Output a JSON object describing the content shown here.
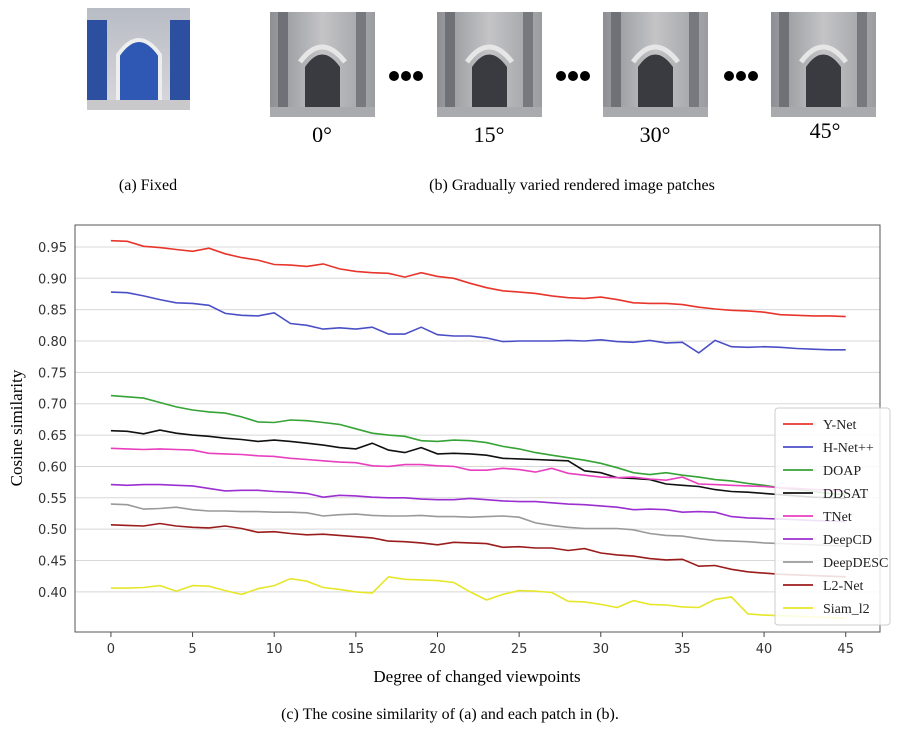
{
  "figure": {
    "panel_a": {
      "caption": "(a) Fixed"
    },
    "panel_b": {
      "angles": [
        "0°",
        "15°",
        "30°",
        "45°"
      ],
      "caption": "(b) Gradually varied rendered image patches"
    },
    "caption": "(c) The cosine similarity of (a) and each patch in (b)."
  },
  "chart_data": {
    "type": "line",
    "x_label": "Degree of changed viewpoints",
    "y_label": "Cosine similarity",
    "x": [
      0,
      1,
      2,
      3,
      4,
      5,
      6,
      7,
      8,
      9,
      10,
      11,
      12,
      13,
      14,
      15,
      16,
      17,
      18,
      19,
      20,
      21,
      22,
      23,
      24,
      25,
      26,
      27,
      28,
      29,
      30,
      31,
      32,
      33,
      34,
      35,
      36,
      37,
      38,
      39,
      40,
      41,
      42,
      43,
      44,
      45
    ],
    "xlim": [
      -2.2,
      47.1
    ],
    "xticks": [
      0,
      5,
      10,
      15,
      20,
      25,
      30,
      35,
      40,
      45
    ],
    "ylim": [
      0.336,
      0.985
    ],
    "yticks": [
      {
        "value": 0.4,
        "label": "0.40"
      },
      0.45,
      {
        "value": 0.5,
        "label": "0.50"
      },
      0.55,
      {
        "value": 0.6,
        "label": "0.60"
      },
      0.65,
      {
        "value": 0.7,
        "label": "0.70"
      },
      0.75,
      {
        "value": 0.8,
        "label": "0.80"
      },
      0.85,
      {
        "value": 0.9,
        "label": "0.90"
      },
      0.95
    ],
    "grid": true,
    "legend": "lower right",
    "series": [
      {
        "name": "Y-Net",
        "color": "#e8352b",
        "values": [
          0.96,
          0.959,
          0.951,
          0.949,
          0.946,
          0.943,
          0.948,
          0.939,
          0.933,
          0.929,
          0.922,
          0.921,
          0.919,
          0.923,
          0.915,
          0.911,
          0.909,
          0.908,
          0.902,
          0.909,
          0.903,
          0.9,
          0.892,
          0.885,
          0.88,
          0.878,
          0.876,
          0.872,
          0.869,
          0.868,
          0.87,
          0.866,
          0.861,
          0.86,
          0.86,
          0.858,
          0.854,
          0.851,
          0.849,
          0.848,
          0.846,
          0.842,
          0.841,
          0.84,
          0.84,
          0.839
        ]
      },
      {
        "name": "H-Net++",
        "color": "#4b4fc6",
        "values": [
          0.878,
          0.877,
          0.872,
          0.866,
          0.861,
          0.86,
          0.857,
          0.844,
          0.841,
          0.84,
          0.845,
          0.828,
          0.825,
          0.819,
          0.821,
          0.819,
          0.822,
          0.811,
          0.811,
          0.822,
          0.81,
          0.808,
          0.808,
          0.805,
          0.799,
          0.8,
          0.8,
          0.8,
          0.801,
          0.8,
          0.802,
          0.799,
          0.798,
          0.801,
          0.797,
          0.798,
          0.781,
          0.801,
          0.791,
          0.79,
          0.791,
          0.79,
          0.788,
          0.787,
          0.786,
          0.786
        ]
      },
      {
        "name": "DOAP",
        "color": "#36a336",
        "values": [
          0.713,
          0.711,
          0.709,
          0.702,
          0.695,
          0.69,
          0.687,
          0.685,
          0.679,
          0.671,
          0.67,
          0.674,
          0.673,
          0.67,
          0.667,
          0.66,
          0.653,
          0.65,
          0.648,
          0.641,
          0.64,
          0.642,
          0.641,
          0.638,
          0.632,
          0.628,
          0.622,
          0.618,
          0.614,
          0.61,
          0.605,
          0.598,
          0.59,
          0.587,
          0.59,
          0.586,
          0.583,
          0.579,
          0.577,
          0.573,
          0.57,
          0.566,
          0.563,
          0.56,
          0.557,
          0.555
        ]
      },
      {
        "name": "DDSAT",
        "color": "#111111",
        "values": [
          0.657,
          0.656,
          0.652,
          0.658,
          0.653,
          0.65,
          0.648,
          0.645,
          0.643,
          0.64,
          0.642,
          0.64,
          0.637,
          0.634,
          0.63,
          0.628,
          0.637,
          0.626,
          0.622,
          0.63,
          0.62,
          0.621,
          0.62,
          0.618,
          0.613,
          0.612,
          0.611,
          0.61,
          0.609,
          0.593,
          0.59,
          0.582,
          0.581,
          0.579,
          0.572,
          0.57,
          0.568,
          0.563,
          0.56,
          0.559,
          0.557,
          0.555,
          0.553,
          0.551,
          0.55,
          0.549
        ]
      },
      {
        "name": "TNet",
        "color": "#e83fbf",
        "values": [
          0.629,
          0.628,
          0.627,
          0.628,
          0.627,
          0.626,
          0.621,
          0.62,
          0.619,
          0.617,
          0.616,
          0.613,
          0.611,
          0.609,
          0.607,
          0.606,
          0.601,
          0.6,
          0.603,
          0.603,
          0.601,
          0.6,
          0.594,
          0.594,
          0.597,
          0.595,
          0.591,
          0.597,
          0.589,
          0.586,
          0.583,
          0.582,
          0.583,
          0.58,
          0.578,
          0.583,
          0.572,
          0.571,
          0.57,
          0.569,
          0.568,
          0.566,
          0.565,
          0.563,
          0.562,
          0.561
        ]
      },
      {
        "name": "DeepCD",
        "color": "#9b2fd0",
        "values": [
          0.571,
          0.57,
          0.571,
          0.571,
          0.57,
          0.569,
          0.565,
          0.561,
          0.562,
          0.562,
          0.56,
          0.559,
          0.557,
          0.551,
          0.554,
          0.553,
          0.551,
          0.55,
          0.55,
          0.548,
          0.547,
          0.547,
          0.549,
          0.547,
          0.545,
          0.544,
          0.544,
          0.542,
          0.54,
          0.539,
          0.537,
          0.535,
          0.531,
          0.532,
          0.531,
          0.527,
          0.528,
          0.527,
          0.52,
          0.518,
          0.517,
          0.516,
          0.515,
          0.514,
          0.513,
          0.512
        ]
      },
      {
        "name": "DeepDESC",
        "color": "#999999",
        "values": [
          0.54,
          0.539,
          0.532,
          0.533,
          0.535,
          0.531,
          0.529,
          0.529,
          0.528,
          0.528,
          0.527,
          0.527,
          0.526,
          0.521,
          0.523,
          0.524,
          0.522,
          0.521,
          0.521,
          0.522,
          0.52,
          0.52,
          0.519,
          0.52,
          0.521,
          0.519,
          0.51,
          0.506,
          0.503,
          0.501,
          0.501,
          0.501,
          0.499,
          0.493,
          0.49,
          0.489,
          0.485,
          0.482,
          0.481,
          0.48,
          0.478,
          0.477,
          0.476,
          0.475,
          0.474,
          0.473
        ]
      },
      {
        "name": "L2-Net",
        "color": "#9b1c1c",
        "values": [
          0.507,
          0.506,
          0.505,
          0.509,
          0.505,
          0.503,
          0.502,
          0.505,
          0.501,
          0.495,
          0.496,
          0.493,
          0.491,
          0.492,
          0.49,
          0.488,
          0.486,
          0.481,
          0.48,
          0.478,
          0.475,
          0.479,
          0.478,
          0.477,
          0.471,
          0.472,
          0.47,
          0.47,
          0.466,
          0.469,
          0.462,
          0.459,
          0.457,
          0.453,
          0.451,
          0.452,
          0.441,
          0.442,
          0.436,
          0.432,
          0.43,
          0.428,
          0.427,
          0.426,
          0.425,
          0.424
        ]
      },
      {
        "name": "Siam_l2",
        "color": "#e6e62a",
        "values": [
          0.406,
          0.406,
          0.407,
          0.41,
          0.401,
          0.41,
          0.409,
          0.402,
          0.396,
          0.405,
          0.41,
          0.421,
          0.417,
          0.407,
          0.404,
          0.4,
          0.398,
          0.424,
          0.42,
          0.419,
          0.418,
          0.415,
          0.4,
          0.387,
          0.396,
          0.402,
          0.401,
          0.399,
          0.385,
          0.384,
          0.38,
          0.375,
          0.386,
          0.38,
          0.379,
          0.376,
          0.375,
          0.388,
          0.392,
          0.365,
          0.363,
          0.362,
          0.361,
          0.36,
          0.359,
          0.358
        ]
      }
    ]
  }
}
